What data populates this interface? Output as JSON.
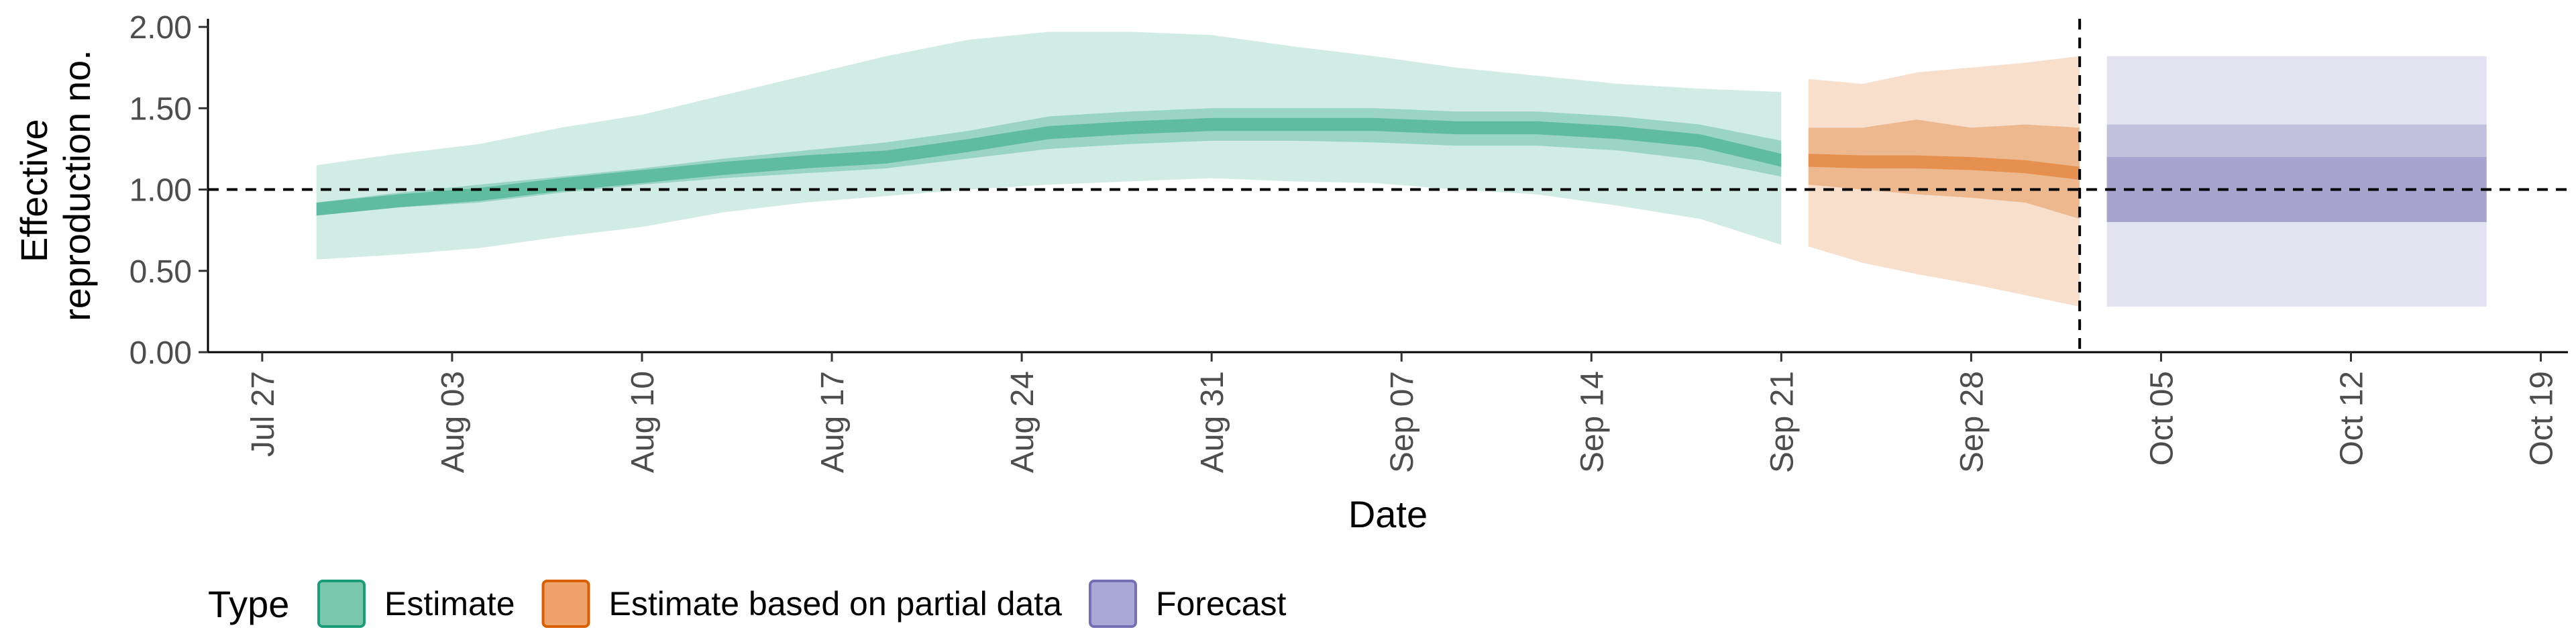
{
  "chart_data": {
    "type": "area",
    "title": "",
    "xlabel": "Date",
    "ylabel_lines": [
      "Effective",
      "reproduction no."
    ],
    "ylim": [
      0,
      2.05
    ],
    "xlim": [
      "2020-07-25",
      "2020-10-20"
    ],
    "y_ticks": [
      0,
      0.5,
      1.0,
      1.5,
      2.0
    ],
    "y_tick_labels": [
      "0.00",
      "0.50",
      "1.00",
      "1.50",
      "2.00"
    ],
    "x_ticks": [
      "2020-07-27",
      "2020-08-03",
      "2020-08-10",
      "2020-08-17",
      "2020-08-24",
      "2020-08-31",
      "2020-09-07",
      "2020-09-14",
      "2020-09-21",
      "2020-09-28",
      "2020-10-05",
      "2020-10-12",
      "2020-10-19"
    ],
    "x_tick_labels": [
      "Jul 27",
      "Aug 03",
      "Aug 10",
      "Aug 17",
      "Aug 24",
      "Aug 31",
      "Sep 07",
      "Sep 14",
      "Sep 21",
      "Sep 28",
      "Oct 05",
      "Oct 12",
      "Oct 19"
    ],
    "reference_line_y": 1.0,
    "forecast_start_date": "2020-10-02",
    "legend": {
      "title": "Type",
      "position": "bottom",
      "entries": [
        {
          "label": "Estimate",
          "fill": "#7ac7ae",
          "stroke": "#1b9e77"
        },
        {
          "label": "Estimate based on partial data",
          "fill": "#eda36b",
          "stroke": "#d95f02"
        },
        {
          "label": "Forecast",
          "fill": "#aaa8d5",
          "stroke": "#7570b3"
        }
      ]
    },
    "series": [
      {
        "name": "Estimate",
        "color": "#1b9e77",
        "dates": [
          "2020-07-29",
          "2020-08-01",
          "2020-08-04",
          "2020-08-07",
          "2020-08-10",
          "2020-08-13",
          "2020-08-16",
          "2020-08-19",
          "2020-08-22",
          "2020-08-25",
          "2020-08-28",
          "2020-08-31",
          "2020-09-03",
          "2020-09-06",
          "2020-09-09",
          "2020-09-12",
          "2020-09-15",
          "2020-09-18",
          "2020-09-21"
        ],
        "median": [
          0.88,
          0.93,
          0.97,
          1.03,
          1.08,
          1.13,
          1.17,
          1.2,
          1.27,
          1.35,
          1.38,
          1.4,
          1.4,
          1.4,
          1.38,
          1.38,
          1.35,
          1.3,
          1.18
        ],
        "ci50": [
          [
            0.84,
            0.92
          ],
          [
            0.89,
            0.98
          ],
          [
            0.92,
            1.03
          ],
          [
            0.98,
            1.08
          ],
          [
            1.03,
            1.13
          ],
          [
            1.07,
            1.19
          ],
          [
            1.1,
            1.24
          ],
          [
            1.13,
            1.29
          ],
          [
            1.19,
            1.36
          ],
          [
            1.25,
            1.45
          ],
          [
            1.28,
            1.48
          ],
          [
            1.3,
            1.5
          ],
          [
            1.3,
            1.5
          ],
          [
            1.29,
            1.5
          ],
          [
            1.27,
            1.48
          ],
          [
            1.27,
            1.48
          ],
          [
            1.24,
            1.45
          ],
          [
            1.18,
            1.4
          ],
          [
            1.08,
            1.3
          ]
        ],
        "ci90": [
          [
            0.57,
            1.15
          ],
          [
            0.6,
            1.22
          ],
          [
            0.64,
            1.28
          ],
          [
            0.71,
            1.38
          ],
          [
            0.77,
            1.46
          ],
          [
            0.86,
            1.58
          ],
          [
            0.92,
            1.7
          ],
          [
            0.96,
            1.82
          ],
          [
            1.0,
            1.92
          ],
          [
            1.03,
            1.97
          ],
          [
            1.05,
            1.97
          ],
          [
            1.07,
            1.95
          ],
          [
            1.05,
            1.88
          ],
          [
            1.04,
            1.82
          ],
          [
            1.0,
            1.75
          ],
          [
            0.97,
            1.7
          ],
          [
            0.9,
            1.65
          ],
          [
            0.82,
            1.62
          ],
          [
            0.66,
            1.6
          ]
        ]
      },
      {
        "name": "Estimate based on partial data",
        "color": "#d95f02",
        "dates": [
          "2020-09-22",
          "2020-09-24",
          "2020-09-26",
          "2020-09-28",
          "2020-09-30",
          "2020-10-02"
        ],
        "median": [
          1.18,
          1.17,
          1.17,
          1.16,
          1.14,
          1.1
        ],
        "ci50": [
          [
            1.03,
            1.38
          ],
          [
            1.0,
            1.38
          ],
          [
            0.97,
            1.43
          ],
          [
            0.95,
            1.38
          ],
          [
            0.92,
            1.4
          ],
          [
            0.82,
            1.38
          ]
        ],
        "ci90": [
          [
            0.65,
            1.68
          ],
          [
            0.55,
            1.65
          ],
          [
            0.48,
            1.72
          ],
          [
            0.42,
            1.75
          ],
          [
            0.35,
            1.78
          ],
          [
            0.28,
            1.82
          ]
        ]
      },
      {
        "name": "Forecast",
        "color": "#7570b3",
        "dates": [
          "2020-10-03",
          "2020-10-17"
        ],
        "median": [
          1.0,
          1.0
        ],
        "ci20": [
          [
            0.8,
            1.2
          ],
          [
            0.8,
            1.2
          ]
        ],
        "ci50": [
          [
            0.8,
            1.4
          ],
          [
            0.8,
            1.4
          ]
        ],
        "ci90": [
          [
            0.28,
            1.82
          ],
          [
            0.28,
            1.82
          ]
        ]
      }
    ]
  }
}
